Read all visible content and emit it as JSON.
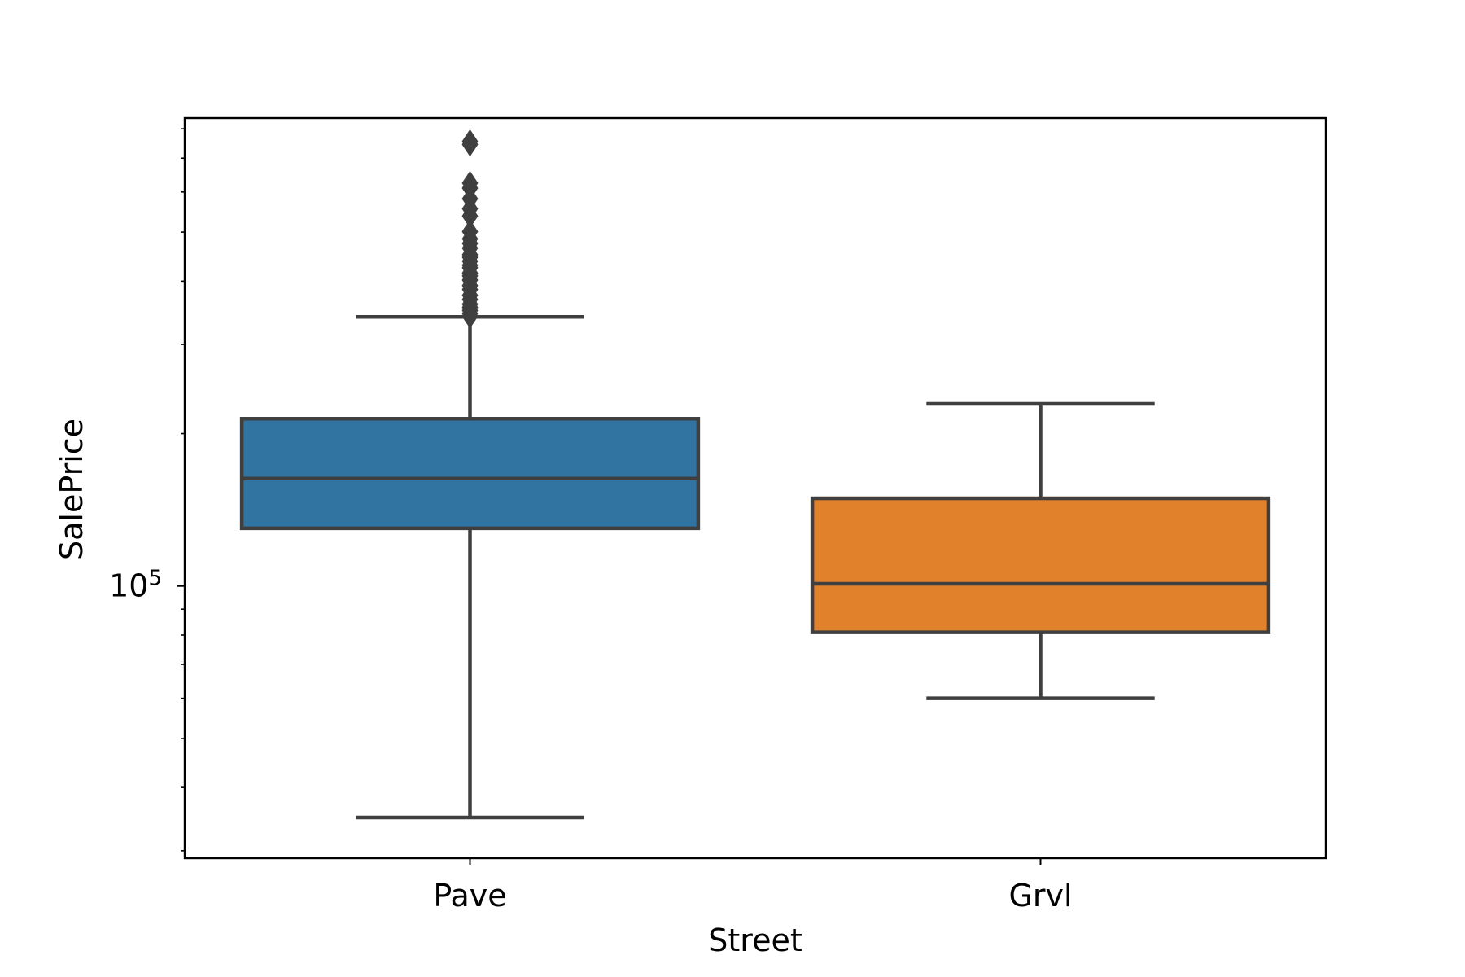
{
  "chart_data": {
    "type": "box",
    "title": "",
    "xlabel": "Street",
    "ylabel": "SalePrice",
    "yscale": "log",
    "ylim": [
      29000,
      840000
    ],
    "categories": [
      "Pave",
      "Grvl"
    ],
    "y_tick_labels": [
      {
        "value": 100000,
        "base": "10",
        "exponent": "5"
      }
    ],
    "grid": false,
    "legend": "none",
    "boxes": [
      {
        "category": "Pave",
        "color": "#3274a1",
        "whisker_low": 34900,
        "q1": 130000,
        "median": 163000,
        "q3": 214000,
        "whisker_high": 340000,
        "outliers": [
          341000,
          345000,
          350000,
          355000,
          360000,
          368000,
          375000,
          385000,
          392000,
          402000,
          410000,
          415000,
          425000,
          430000,
          438000,
          446000,
          451000,
          465000,
          475000,
          485000,
          501000,
          538000,
          556000,
          582000,
          611000,
          625000,
          745000,
          755000
        ]
      },
      {
        "category": "Grvl",
        "color": "#e1812c",
        "whisker_low": 60000,
        "q1": 81000,
        "median": 101000,
        "q3": 149000,
        "whisker_high": 228950,
        "outliers": []
      }
    ],
    "colors": {
      "edge": "#3f3f3f",
      "axes": "#000000"
    }
  }
}
